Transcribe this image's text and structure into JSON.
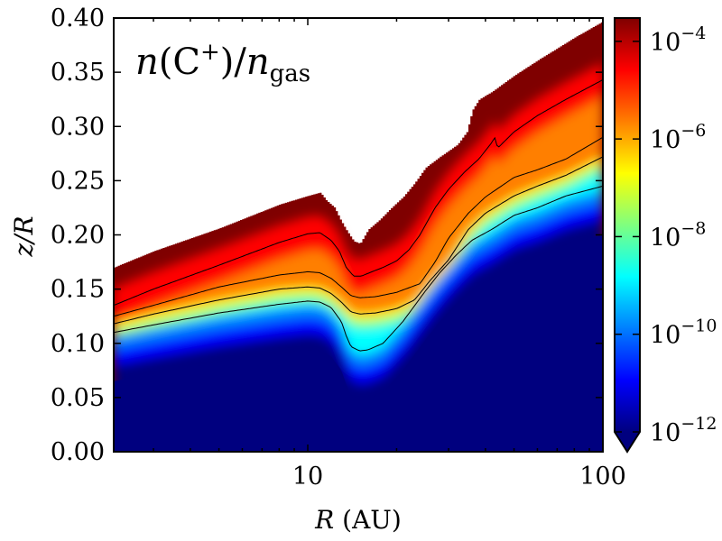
{
  "chart_data": {
    "type": "heatmap",
    "title": "n(C⁺)/n_gas",
    "title_parts": {
      "n1": "n",
      "open": "(C",
      "sup": "+",
      "close": ")/",
      "n2": "n",
      "sub": "gas"
    },
    "xlabel": "R (AU)",
    "xlabel_parts": {
      "var": "R",
      "unit": "(AU)"
    },
    "ylabel": "z/R",
    "xscale": "log",
    "xlim": [
      2.2,
      100
    ],
    "ylim": [
      0.0,
      0.4
    ],
    "x_ticks": [
      {
        "value": 10,
        "label": "10"
      },
      {
        "value": 100,
        "label": "100"
      }
    ],
    "y_ticks": [
      {
        "value": 0.0,
        "label": "0.00"
      },
      {
        "value": 0.05,
        "label": "0.05"
      },
      {
        "value": 0.1,
        "label": "0.10"
      },
      {
        "value": 0.15,
        "label": "0.15"
      },
      {
        "value": 0.2,
        "label": "0.20"
      },
      {
        "value": 0.25,
        "label": "0.25"
      },
      {
        "value": 0.3,
        "label": "0.30"
      },
      {
        "value": 0.35,
        "label": "0.35"
      },
      {
        "value": 0.4,
        "label": "0.40"
      }
    ],
    "surface_boundary": {
      "R": [
        2.2,
        3.0,
        5.0,
        8.0,
        10.0,
        11.0,
        11.5,
        12.3,
        12.8,
        13.3,
        13.8,
        14.3,
        15.0,
        16.0,
        17.5,
        19.0,
        21.0,
        23.0,
        25.0,
        28.0,
        32.0,
        34.5,
        36.0,
        38.0,
        42.0,
        50.0,
        60.0,
        80.0,
        100.0
      ],
      "z": [
        0.17,
        0.185,
        0.206,
        0.228,
        0.236,
        0.239,
        0.232,
        0.225,
        0.215,
        0.207,
        0.2,
        0.194,
        0.192,
        0.205,
        0.214,
        0.224,
        0.235,
        0.248,
        0.262,
        0.272,
        0.283,
        0.295,
        0.315,
        0.325,
        0.332,
        0.347,
        0.361,
        0.382,
        0.397
      ]
    },
    "colorbar": {
      "scale": "log",
      "range": [
        1e-12,
        0.0003
      ],
      "extend": "min",
      "ticks": [
        {
          "value": 1e-12,
          "label": "10",
          "exp": "−12"
        },
        {
          "value": 1e-10,
          "label": "10",
          "exp": "−10"
        },
        {
          "value": 1e-08,
          "label": "10",
          "exp": "−8"
        },
        {
          "value": 1e-06,
          "label": "10",
          "exp": "−6"
        },
        {
          "value": 0.0001,
          "label": "10",
          "exp": "−4"
        }
      ],
      "colors": [
        "#00007f",
        "#0000ff",
        "#007fff",
        "#00ffff",
        "#7fff7f",
        "#ffff00",
        "#ff7f00",
        "#ff0000",
        "#7f0000"
      ]
    },
    "contours": [
      {
        "level": 0.0001,
        "R": [
          2.2,
          3.0,
          5.0,
          8.0,
          10.0,
          11.0,
          12.0,
          12.8,
          13.5,
          14.3,
          15.2,
          16.5,
          18.0,
          20.0,
          22.0,
          24.0,
          27.0,
          30.0,
          34.0,
          38.0,
          42.0,
          43.0,
          44.0,
          50.0,
          60.0,
          75.0,
          100.0
        ],
        "z": [
          0.135,
          0.15,
          0.172,
          0.193,
          0.201,
          0.202,
          0.195,
          0.185,
          0.17,
          0.162,
          0.162,
          0.166,
          0.17,
          0.176,
          0.186,
          0.2,
          0.225,
          0.242,
          0.258,
          0.27,
          0.285,
          0.29,
          0.28,
          0.295,
          0.31,
          0.325,
          0.343
        ]
      },
      {
        "level": 1e-06,
        "R": [
          2.2,
          3.0,
          5.0,
          8.0,
          10.0,
          11.0,
          12.0,
          13.0,
          14.0,
          15.0,
          17.0,
          20.0,
          24.0,
          27.0,
          30.0,
          35.0,
          40.0,
          50.0,
          60.0,
          75.0,
          100.0
        ],
        "z": [
          0.125,
          0.135,
          0.152,
          0.163,
          0.166,
          0.165,
          0.16,
          0.152,
          0.144,
          0.142,
          0.143,
          0.147,
          0.155,
          0.175,
          0.197,
          0.22,
          0.235,
          0.253,
          0.26,
          0.27,
          0.29
        ]
      },
      {
        "level": 1e-07,
        "R": [
          2.2,
          3.0,
          5.0,
          8.0,
          10.0,
          11.0,
          12.0,
          13.0,
          14.0,
          15.0,
          17.0,
          20.0,
          23.0,
          26.0,
          30.0,
          35.0,
          40.0,
          50.0,
          60.0,
          75.0,
          100.0
        ],
        "z": [
          0.118,
          0.127,
          0.14,
          0.15,
          0.152,
          0.151,
          0.146,
          0.138,
          0.129,
          0.127,
          0.128,
          0.132,
          0.14,
          0.158,
          0.177,
          0.205,
          0.22,
          0.236,
          0.245,
          0.255,
          0.272
        ]
      },
      {
        "level": 1e-09,
        "R": [
          2.2,
          3.0,
          5.0,
          8.0,
          10.0,
          11.0,
          12.0,
          13.0,
          13.5,
          14.0,
          15.0,
          16.0,
          18.0,
          21.0,
          25.0,
          28.0,
          32.0,
          36.0,
          42.0,
          50.0,
          60.0,
          75.0,
          100.0
        ],
        "z": [
          0.11,
          0.117,
          0.128,
          0.136,
          0.139,
          0.138,
          0.133,
          0.12,
          0.107,
          0.097,
          0.093,
          0.094,
          0.1,
          0.12,
          0.148,
          0.165,
          0.182,
          0.195,
          0.205,
          0.218,
          0.225,
          0.236,
          0.245
        ]
      }
    ]
  }
}
